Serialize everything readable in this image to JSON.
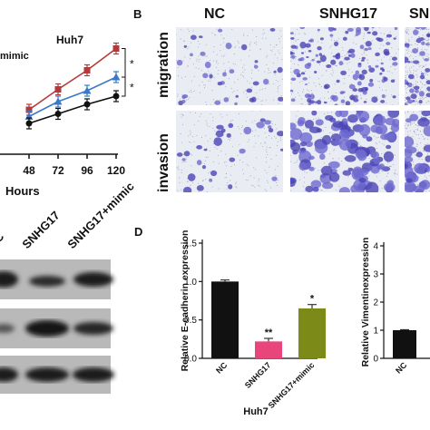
{
  "panel_letters": {
    "b": "B",
    "d": "D"
  },
  "chart_data": [
    {
      "type": "line",
      "title": "Huh7",
      "legend_partial": "mimic",
      "xlabel": "Hours",
      "ylabel": "",
      "x": [
        48,
        72,
        96,
        120
      ],
      "x_tick_labels": [
        "48",
        "72",
        "96",
        "120"
      ],
      "xlim": [
        24,
        120
      ],
      "ylim": [
        0,
        10
      ],
      "series": [
        {
          "values": [
            2.6,
            4.1,
            5.5,
            7.1
          ],
          "color": "#b33a3a",
          "marker": "square"
        },
        {
          "values": [
            2.1,
            3.2,
            4.0,
            5.0
          ],
          "color": "#3a78c9",
          "marker": "triangle"
        },
        {
          "values": [
            1.6,
            2.3,
            3.0,
            3.6
          ],
          "color": "#111111",
          "marker": "circle"
        }
      ],
      "significance": [
        "*",
        "*"
      ]
    },
    {
      "type": "bar",
      "title": "",
      "xlabel": "Huh7",
      "ylabel": "Relative E-cadherin expression",
      "categories": [
        "NC",
        "SNHG17",
        "SNHG17+mimic"
      ],
      "values": [
        1.0,
        0.22,
        0.65
      ],
      "errors": [
        0.02,
        0.04,
        0.05
      ],
      "colors": [
        "#111111",
        "#e8457a",
        "#7c8a17"
      ],
      "annotations": [
        "",
        "**",
        "*"
      ],
      "ylim": [
        0,
        1.5
      ],
      "y_ticks": [
        "0.0",
        "0.5",
        "1.0",
        "1.5"
      ]
    },
    {
      "type": "bar",
      "title": "",
      "ylabel": "Relative Vimentinexpression",
      "categories": [
        "NC"
      ],
      "values": [
        1.0
      ],
      "errors": [
        0.02
      ],
      "colors": [
        "#111111"
      ],
      "ylim": [
        0,
        4
      ],
      "y_ticks": [
        "0",
        "1",
        "2",
        "3",
        "4"
      ]
    }
  ],
  "panel_b": {
    "columns": [
      "NC",
      "SNHG17",
      "SN"
    ],
    "rows": [
      "migration",
      "invasion"
    ]
  },
  "western_blot": {
    "lanes": [
      "NC",
      "SNHG17",
      "SNHG17+mimic"
    ]
  }
}
